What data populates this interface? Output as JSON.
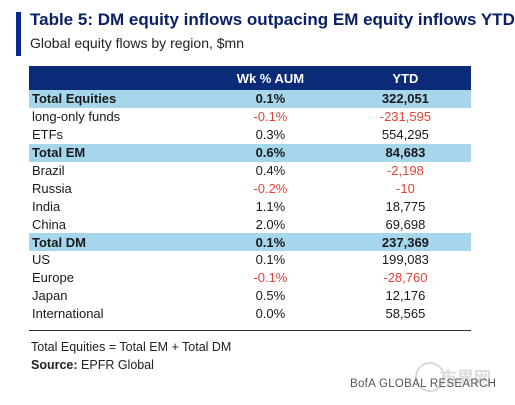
{
  "header": {
    "title": "Table 5: DM equity inflows outpacing EM equity inflows YTD",
    "subtitle": "Global equity flows by region, $mn"
  },
  "table": {
    "columns": [
      "",
      "Wk % AUM",
      "YTD"
    ],
    "rows": [
      {
        "label": "Total Equities",
        "wk": "0.1%",
        "ytd": "322,051",
        "total": true
      },
      {
        "label": "long-only funds",
        "wk": "-0.1%",
        "ytd": "-231,595"
      },
      {
        "label": "ETFs",
        "wk": "0.3%",
        "ytd": "554,295"
      },
      {
        "label": "Total EM",
        "wk": "0.6%",
        "ytd": "84,683",
        "total": true
      },
      {
        "label": "Brazil",
        "wk": "0.4%",
        "ytd": "-2,198"
      },
      {
        "label": "Russia",
        "wk": "-0.2%",
        "ytd": "-10"
      },
      {
        "label": "India",
        "wk": "1.1%",
        "ytd": "18,775"
      },
      {
        "label": "China",
        "wk": "2.0%",
        "ytd": "69,698"
      },
      {
        "label": "Total DM",
        "wk": "0.1%",
        "ytd": "237,369",
        "total": true
      },
      {
        "label": "US",
        "wk": "0.1%",
        "ytd": "199,083"
      },
      {
        "label": "Europe",
        "wk": "-0.1%",
        "ytd": "-28,760"
      },
      {
        "label": "Japan",
        "wk": "0.5%",
        "ytd": "12,176"
      },
      {
        "label": "International",
        "wk": "0.0%",
        "ytd": "58,565"
      }
    ]
  },
  "footer": {
    "note": "Total Equities = Total EM + Total DM",
    "source_label": "Source:",
    "source_value": " EPFR Global",
    "brand": "BofA GLOBAL RESEARCH",
    "watermark": "市界网"
  },
  "colors": {
    "header_bg": "#0b2a78",
    "total_row_bg": "#a6d6ec",
    "negative": "#e0453a",
    "title": "#0a1f66"
  }
}
